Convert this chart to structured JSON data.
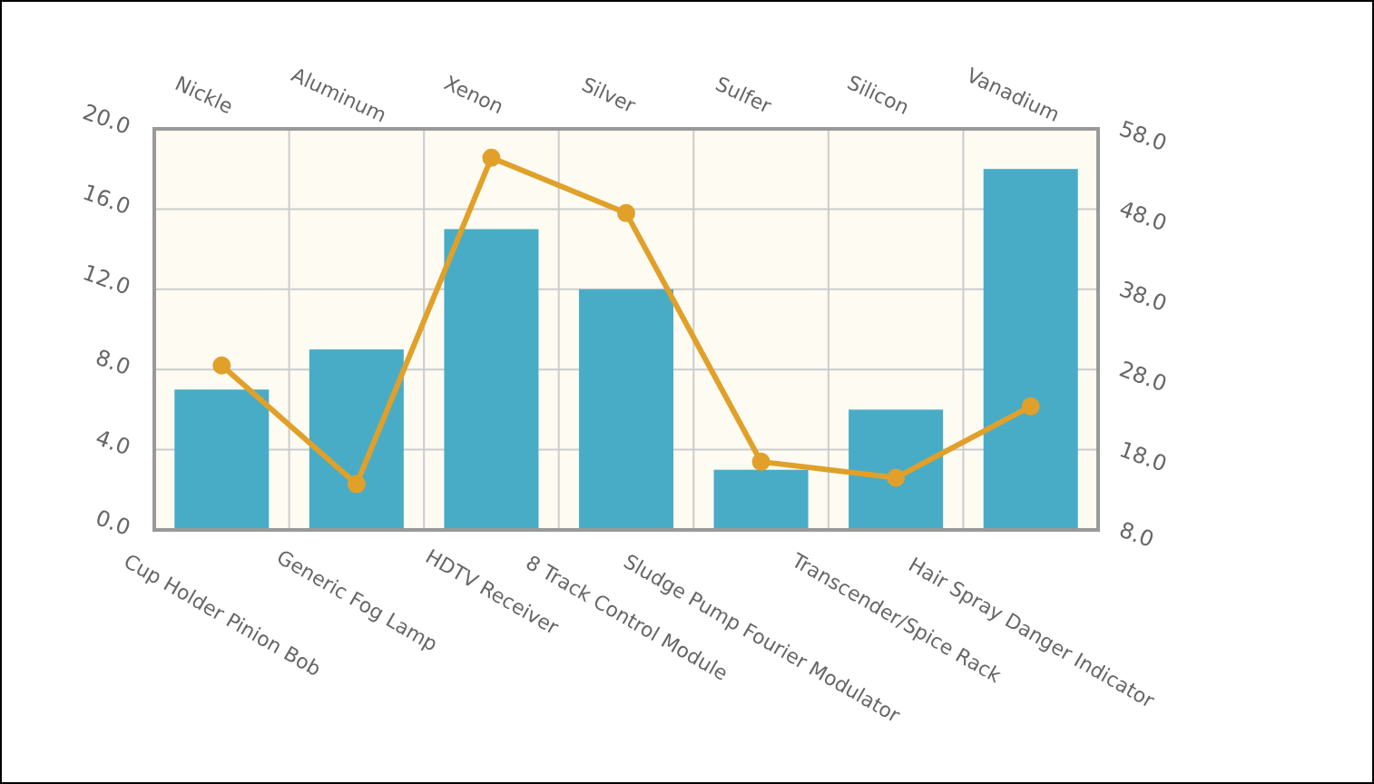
{
  "chart_data": {
    "type": "bar",
    "categories": [
      "Cup Holder Pinion Bob",
      "Generic Fog Lamp",
      "HDTV Receiver",
      "8 Track Control Module",
      "Sludge Pump Fourier Modulator",
      "Transcender/Spice Rack",
      "Hair Spray Danger Indicator"
    ],
    "series": [
      {
        "color": "#48acc6",
        "values": [
          7,
          9,
          15,
          12,
          3,
          6,
          18
        ]
      },
      {
        "type": "line",
        "axis": "y2",
        "color": "#e0a02a",
        "marker": "circle",
        "values": [
          28.5,
          13.7,
          54.4,
          47.5,
          16.5,
          14.5,
          23.4
        ]
      }
    ],
    "ylim": [
      0,
      20
    ],
    "yticks": [
      {
        "value": 0,
        "label": "0.0"
      },
      {
        "value": 4,
        "label": "4.0"
      },
      {
        "value": 8,
        "label": "8.0"
      },
      {
        "value": 12,
        "label": "12.0"
      },
      {
        "value": 16,
        "label": "16.0"
      },
      {
        "value": 20,
        "label": "20.0"
      }
    ],
    "y2lim": [
      8,
      58
    ],
    "y2ticks": [
      {
        "value": 8,
        "label": "8.0"
      },
      {
        "value": 18,
        "label": "18.0"
      },
      {
        "value": 28,
        "label": "28.0"
      },
      {
        "value": 38,
        "label": "38.0"
      },
      {
        "value": 48,
        "label": "48.0"
      },
      {
        "value": 58,
        "label": "58.0"
      }
    ],
    "annotations": [
      "Nickle",
      "Aluminum",
      "Xenon",
      "Silver",
      "Sulfer",
      "Silicon",
      "Vanadium"
    ],
    "grid": true
  }
}
